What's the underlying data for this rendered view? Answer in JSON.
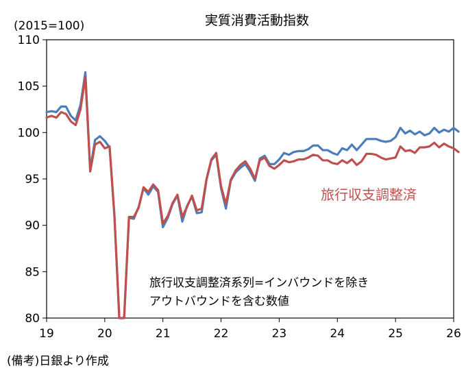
{
  "chart_data": {
    "type": "line",
    "title": "実質消費活動指数",
    "unit_label": "(2015=100)",
    "note": "(備考)日銀より作成",
    "annotation": {
      "line1": "旅行収支調整済系列=インバウンドを除き",
      "line2": "アウトバウンドを含む数値"
    },
    "ylim": [
      80,
      110
    ],
    "yticks": [
      80,
      85,
      90,
      95,
      100,
      105,
      110
    ],
    "xlim": [
      2019.0,
      2026.0
    ],
    "xticks": [
      {
        "label": "19",
        "value": 2019.0
      },
      {
        "label": "20",
        "value": 2020.0
      },
      {
        "label": "21",
        "value": 2021.0
      },
      {
        "label": "22",
        "value": 2022.0
      },
      {
        "label": "23",
        "value": 2023.0
      },
      {
        "label": "24",
        "value": 2024.0
      },
      {
        "label": "25",
        "value": 2025.0
      },
      {
        "label": "26",
        "value": 2026.0
      }
    ],
    "x_start": 2019.0,
    "x_step": 0.08333333,
    "series": [
      {
        "name": "実質消費活動指数",
        "color": "#4a7ebb",
        "show_label": false,
        "values": [
          102.2,
          102.3,
          102.2,
          102.8,
          102.8,
          101.8,
          101.3,
          103.0,
          106.5,
          96.0,
          99.2,
          99.6,
          99.1,
          98.4,
          91.0,
          79.8,
          79.8,
          90.8,
          90.7,
          92.0,
          94.0,
          93.3,
          94.2,
          93.6,
          89.8,
          90.8,
          92.3,
          93.2,
          90.4,
          92.1,
          93.1,
          91.3,
          91.4,
          94.9,
          97.0,
          97.6,
          94.0,
          91.8,
          94.8,
          95.7,
          96.2,
          96.6,
          95.8,
          94.8,
          97.2,
          97.5,
          96.6,
          96.6,
          97.1,
          97.8,
          97.6,
          97.9,
          98.0,
          98.0,
          98.2,
          98.6,
          98.6,
          98.1,
          98.1,
          97.8,
          97.6,
          98.3,
          98.1,
          98.7,
          98.1,
          98.7,
          99.3,
          99.3,
          99.3,
          99.1,
          99.0,
          99.1,
          99.5,
          100.5,
          99.9,
          100.2,
          99.8,
          100.1,
          99.7,
          99.9,
          100.5,
          100.0,
          100.3,
          100.1,
          100.5,
          100.1
        ]
      },
      {
        "name": "旅行収支調整済",
        "color": "#c0504d",
        "show_label": true,
        "values": [
          101.6,
          101.8,
          101.6,
          102.2,
          102.0,
          101.2,
          100.8,
          102.5,
          106.0,
          95.8,
          98.7,
          99.0,
          98.3,
          98.5,
          91.0,
          79.8,
          79.8,
          90.9,
          90.9,
          91.9,
          94.1,
          93.6,
          94.4,
          93.8,
          90.2,
          91.0,
          92.4,
          93.3,
          90.9,
          92.0,
          93.2,
          91.6,
          91.8,
          95.0,
          97.1,
          97.8,
          94.2,
          92.3,
          94.9,
          95.9,
          96.5,
          96.9,
          96.1,
          95.0,
          97.0,
          97.3,
          96.4,
          96.1,
          96.5,
          97.0,
          96.8,
          96.9,
          97.1,
          97.1,
          97.3,
          97.6,
          97.5,
          97.0,
          97.0,
          96.7,
          96.6,
          97.0,
          96.7,
          97.1,
          96.5,
          96.9,
          97.7,
          97.7,
          97.6,
          97.3,
          97.1,
          97.2,
          97.3,
          98.5,
          98.0,
          98.1,
          97.8,
          98.4,
          98.4,
          98.5,
          98.9,
          98.4,
          98.8,
          98.5,
          98.3,
          97.9
        ]
      }
    ]
  }
}
